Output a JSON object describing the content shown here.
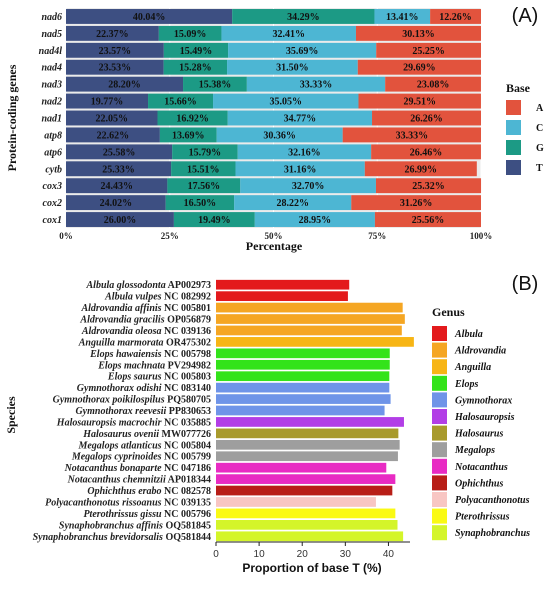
{
  "chart_data": [
    {
      "panel_label": "A",
      "type": "bar",
      "orientation": "horizontal",
      "stacked": true,
      "ylabel": "Protein-coding genes",
      "xlabel": "Percentage",
      "xlim": [
        0,
        100
      ],
      "xticks": [
        "0%",
        "25%",
        "50%",
        "75%",
        "100%"
      ],
      "categories": [
        "nad6",
        "nad5",
        "nad4l",
        "nad4",
        "nad3",
        "nad2",
        "nad1",
        "atp8",
        "atp6",
        "cytb",
        "cox3",
        "cox2",
        "cox1"
      ],
      "legend_title": "Base",
      "legend_position": "right",
      "grid": true,
      "series": [
        {
          "name": "T",
          "color": "#3d4f82",
          "values": [
            40.04,
            22.37,
            23.57,
            23.53,
            28.2,
            19.77,
            22.05,
            22.62,
            25.58,
            25.33,
            24.43,
            24.02,
            26.0
          ]
        },
        {
          "name": "G",
          "color": "#1c9a85",
          "values": [
            34.29,
            15.09,
            15.49,
            15.28,
            15.38,
            15.66,
            16.92,
            13.69,
            15.79,
            15.51,
            17.56,
            16.5,
            19.49
          ]
        },
        {
          "name": "C",
          "color": "#4db6d3",
          "values": [
            13.41,
            32.41,
            35.69,
            31.5,
            33.33,
            35.05,
            34.77,
            30.36,
            32.16,
            31.16,
            32.7,
            28.22,
            28.95
          ]
        },
        {
          "name": "A",
          "color": "#e2533d",
          "values": [
            12.26,
            30.13,
            25.25,
            29.69,
            23.08,
            29.51,
            26.26,
            33.33,
            26.46,
            26.99,
            25.32,
            31.26,
            25.56
          ]
        }
      ],
      "labels": [
        [
          "40.04%",
          "34.29%",
          "13.41%",
          "12.26%"
        ],
        [
          "22.37%",
          "15.09%",
          "32.41%",
          "30.13%"
        ],
        [
          "23.57%",
          "15.49%",
          "35.69%",
          "25.25%"
        ],
        [
          "23.53%",
          "15.28%",
          "31.50%",
          "29.69%"
        ],
        [
          "28.20%",
          "15.38%",
          "33.33%",
          "23.08%"
        ],
        [
          "19.77%",
          "15.66%",
          "35.05%",
          "29.51%"
        ],
        [
          "22.05%",
          "16.92%",
          "34.77%",
          "26.26%"
        ],
        [
          "22.62%",
          "13.69%",
          "30.36%",
          "33.33%"
        ],
        [
          "25.58%",
          "15.79%",
          "32.16%",
          "26.46%"
        ],
        [
          "25.33%",
          "15.51%",
          "31.16%",
          "26.99%"
        ],
        [
          "24.43%",
          "17.56%",
          "32.70%",
          "25.32%"
        ],
        [
          "24.02%",
          "16.50%",
          "28.22%",
          "31.26%"
        ],
        [
          "26.00%",
          "19.49%",
          "28.95%",
          "25.56%"
        ]
      ]
    },
    {
      "panel_label": "B",
      "type": "bar",
      "orientation": "horizontal",
      "ylabel": "Species",
      "xlabel": "Proportion of base T (%)",
      "xlim": [
        0,
        45
      ],
      "xticks": [
        0,
        10,
        20,
        30,
        40
      ],
      "legend_title": "Genus",
      "legend_position": "right",
      "categories": [
        "Albula glossodonta AP002973",
        "Albula vulpes NC 082992",
        "Aldrovandia affinis NC 005801",
        "Aldrovandia gracilis OP056879",
        "Aldrovandia oleosa NC 039136",
        "Anguilla marmorata OR475302",
        "Elops hawaiensis NC 005798",
        "Elops machnata PV294982",
        "Elops saurus NC 005803",
        "Gymnothorax odishi NC 083140",
        "Gymnothorax poikilospilus PQ580705",
        "Gymnothorax reevesii PP830653",
        "Halosauropsis macrochir NC 035885",
        "Halosaurus ovenii MW077726",
        "Megalops atlanticus NC 005804",
        "Megalops cyprinoides NC 005799",
        "Notacanthus bonaparte NC 047186",
        "Notacanthus chemnitzii AP018344",
        "Ophichthus erabo NC 082578",
        "Polyacanthonotus rissoanus NC 039135",
        "Pterothrissus gissu NC 005796",
        "Synaphobranchus affinis OQ581845",
        "Synaphobranchus brevidorsalis OQ581844"
      ],
      "species_names": [
        "Albula glossodonta",
        "Albula vulpes",
        "Aldrovandia affinis",
        "Aldrovandia gracilis",
        "Aldrovandia oleosa",
        "Anguilla marmorata",
        "Elops hawaiensis",
        "Elops machnata",
        "Elops saurus",
        "Gymnothorax odishi",
        "Gymnothorax poikilospilus",
        "Gymnothorax reevesii",
        "Halosauropsis macrochir",
        "Halosaurus ovenii",
        "Megalops atlanticus",
        "Megalops cyprinoides",
        "Notacanthus bonaparte",
        "Notacanthus chemnitzii",
        "Ophichthus erabo",
        "Polyacanthonotus rissoanus",
        "Pterothrissus gissu",
        "Synaphobranchus affinis",
        "Synaphobranchus brevidorsalis"
      ],
      "accessions": [
        "AP002973",
        "NC 082992",
        "NC 005801",
        "OP056879",
        "NC 039136",
        "OR475302",
        "NC 005798",
        "PV294982",
        "NC 005803",
        "NC 083140",
        "PQ580705",
        "PP830653",
        "NC 035885",
        "MW077726",
        "NC 005804",
        "NC 005799",
        "NC 047186",
        "AP018344",
        "NC 082578",
        "NC 039135",
        "NC 005796",
        "OQ581845",
        "OQ581844"
      ],
      "values": [
        30.9,
        30.6,
        43.3,
        43.8,
        43.1,
        45.9,
        40.3,
        40.3,
        40.2,
        40.2,
        40.5,
        39.1,
        43.6,
        42.3,
        42.6,
        42.2,
        39.5,
        41.6,
        40.9,
        37.1,
        41.6,
        42.1,
        43.4
      ],
      "genus_of_bar": [
        "Albula",
        "Albula",
        "Aldrovandia",
        "Aldrovandia",
        "Aldrovandia",
        "Anguilla",
        "Elops",
        "Elops",
        "Elops",
        "Gymnothorax",
        "Gymnothorax",
        "Gymnothorax",
        "Halosauropsis",
        "Halosaurus",
        "Megalops",
        "Megalops",
        "Notacanthus",
        "Notacanthus",
        "Ophichthus",
        "Polyacanthonotus",
        "Pterothrissus",
        "Synaphobranchus",
        "Synaphobranchus"
      ],
      "genera": [
        {
          "name": "Albula",
          "color": "#e31a1c"
        },
        {
          "name": "Aldrovandia",
          "color": "#f5a623"
        },
        {
          "name": "Anguilla",
          "color": "#f7b515"
        },
        {
          "name": "Elops",
          "color": "#33e31a"
        },
        {
          "name": "Gymnothorax",
          "color": "#6f94e8"
        },
        {
          "name": "Halosauropsis",
          "color": "#b23ee6"
        },
        {
          "name": "Halosaurus",
          "color": "#a89a2c"
        },
        {
          "name": "Megalops",
          "color": "#9e9e9e"
        },
        {
          "name": "Notacanthus",
          "color": "#e82bc3"
        },
        {
          "name": "Ophichthus",
          "color": "#b81e17"
        },
        {
          "name": "Polyacanthonotus",
          "color": "#f8c6c3"
        },
        {
          "name": "Pterothrissus",
          "color": "#fafa14"
        },
        {
          "name": "Synaphobranchus",
          "color": "#d4f52a"
        }
      ]
    }
  ]
}
